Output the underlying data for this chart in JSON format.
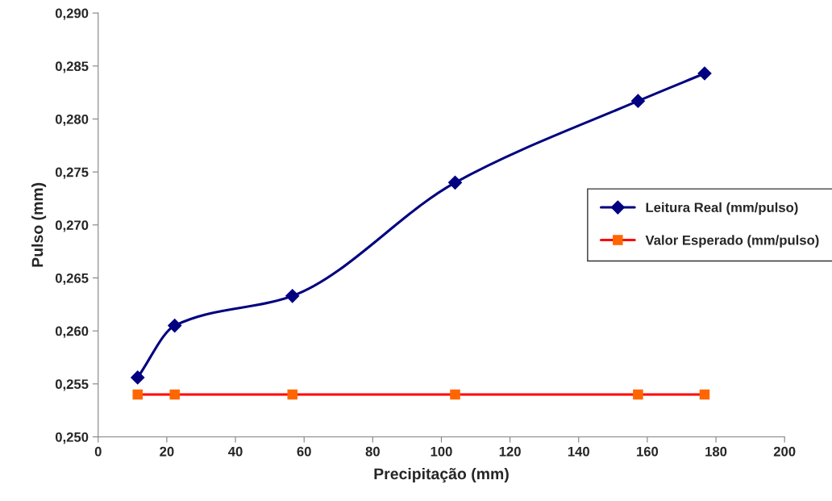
{
  "chart_data": {
    "type": "line",
    "xlabel": "Precipitação (mm)",
    "ylabel": "Pulso (mm)",
    "x": [
      11.5,
      22.3,
      56.6,
      104,
      157.3,
      176.7
    ],
    "series": [
      {
        "name": "Leitura Real (mm/pulso)",
        "color": "#000080",
        "marker": "diamond",
        "values": [
          0.2556,
          0.2605,
          0.2633,
          0.274,
          0.2817,
          0.2843
        ]
      },
      {
        "name": "Valor Esperado (mm/pulso)",
        "color": "#ff0000",
        "colors": [
          "#ff6600",
          "#ff6600",
          "#ff6600",
          "#ff6600",
          "#ff6600",
          "#ff6600"
        ],
        "marker": "square",
        "values": [
          0.254,
          0.254,
          0.254,
          0.254,
          0.254,
          0.254
        ]
      }
    ],
    "xlim": [
      0,
      200
    ],
    "xticks": [
      0,
      20,
      40,
      60,
      80,
      100,
      120,
      140,
      160,
      180,
      200
    ],
    "ylim": [
      0.25,
      0.29
    ],
    "yticks": [
      {
        "value": 0.25,
        "label": "0,250"
      },
      {
        "value": 0.255,
        "label": "0,255"
      },
      {
        "value": 0.26,
        "label": "0,260"
      },
      {
        "value": 0.265,
        "label": "0,265"
      },
      {
        "value": 0.27,
        "label": "0,270"
      },
      {
        "value": 0.275,
        "label": "0,275"
      },
      {
        "value": 0.28,
        "label": "0,280"
      },
      {
        "value": 0.285,
        "label": "0,285"
      },
      {
        "value": 0.29,
        "label": "0,290"
      }
    ],
    "grid": false,
    "legend": "right",
    "line_style": "solid"
  }
}
